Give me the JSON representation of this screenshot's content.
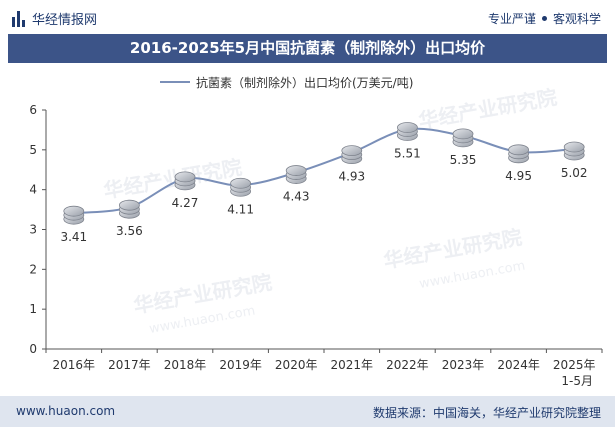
{
  "header": {
    "logo_text": "华经情报网",
    "tagline_left": "专业严谨",
    "tagline_right": "客观科学"
  },
  "watermark": "华经产业研究院",
  "watermark_url": "www.huaon.com",
  "chart_data": {
    "type": "line",
    "title": "2016-2025年5月中国抗菌素（制剂除外）出口均价",
    "series": [
      {
        "name": "抗菌素（制剂除外）出口均价(万美元/吨)",
        "values": [
          3.41,
          3.56,
          4.27,
          4.11,
          4.43,
          4.93,
          5.51,
          5.35,
          4.95,
          5.02
        ]
      }
    ],
    "categories": [
      "2016年",
      "2017年",
      "2018年",
      "2019年",
      "2020年",
      "2021年",
      "2022年",
      "2023年",
      "2024年",
      "2025年"
    ],
    "category_sublabels": [
      "",
      "",
      "",
      "",
      "",
      "",
      "",
      "",
      "",
      "1-5月"
    ],
    "data_labels": [
      "3.41",
      "3.56",
      "4.27",
      "4.11",
      "4.43",
      "4.93",
      "5.51",
      "5.35",
      "4.95",
      "5.02"
    ],
    "ylim": [
      0,
      6
    ],
    "yticks": [
      "0",
      "1",
      "2",
      "3",
      "4",
      "5",
      "6"
    ],
    "xlabel": "",
    "ylabel": "",
    "legend_position": "top-center",
    "colors": {
      "line": "#7a8fb8",
      "coin": "#b8bcc4",
      "coin_edge": "#7d828c"
    }
  },
  "footer": {
    "website": "www.huaon.com",
    "source": "数据来源：中国海关，华经产业研究院整理"
  }
}
